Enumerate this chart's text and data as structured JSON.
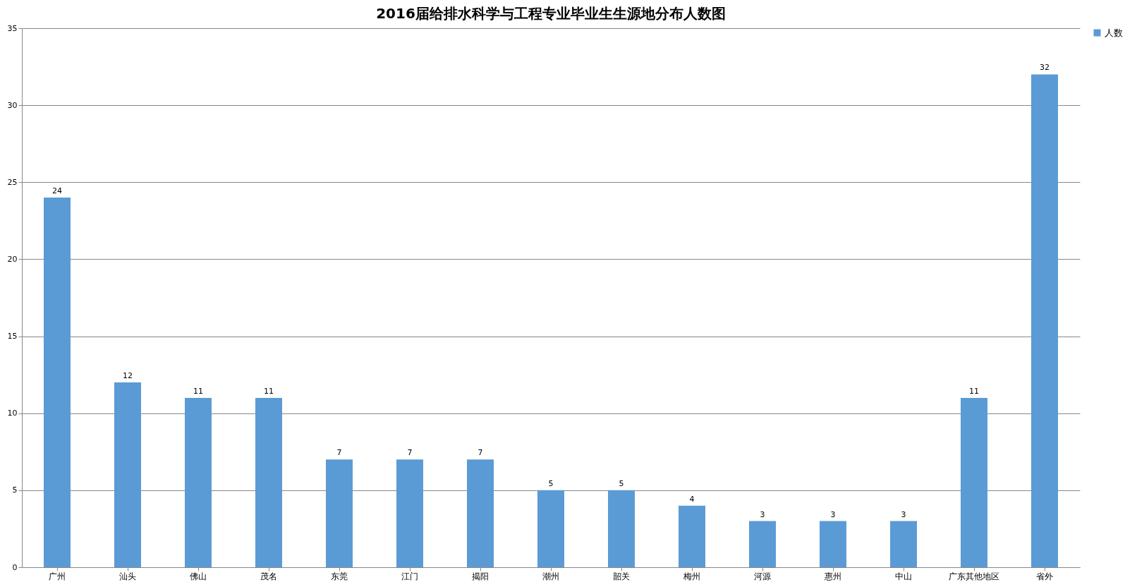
{
  "chart_data": {
    "type": "bar",
    "title": "2016届给排水科学与工程专业毕业生生源地分布人数图",
    "categories": [
      "广州",
      "汕头",
      "佛山",
      "茂名",
      "东莞",
      "江门",
      "揭阳",
      "潮州",
      "韶关",
      "梅州",
      "河源",
      "惠州",
      "中山",
      "广东其他地区",
      "省外"
    ],
    "series": [
      {
        "name": "人数",
        "color": "#5b9bd5",
        "values": [
          24,
          12,
          11,
          11,
          7,
          7,
          7,
          5,
          5,
          4,
          3,
          3,
          3,
          11,
          32
        ]
      }
    ],
    "ylim": [
      0,
      35
    ],
    "yticks": [
      0,
      5,
      10,
      15,
      20,
      25,
      30,
      35
    ],
    "grid": "y",
    "legend": "right",
    "data_labels": true
  }
}
